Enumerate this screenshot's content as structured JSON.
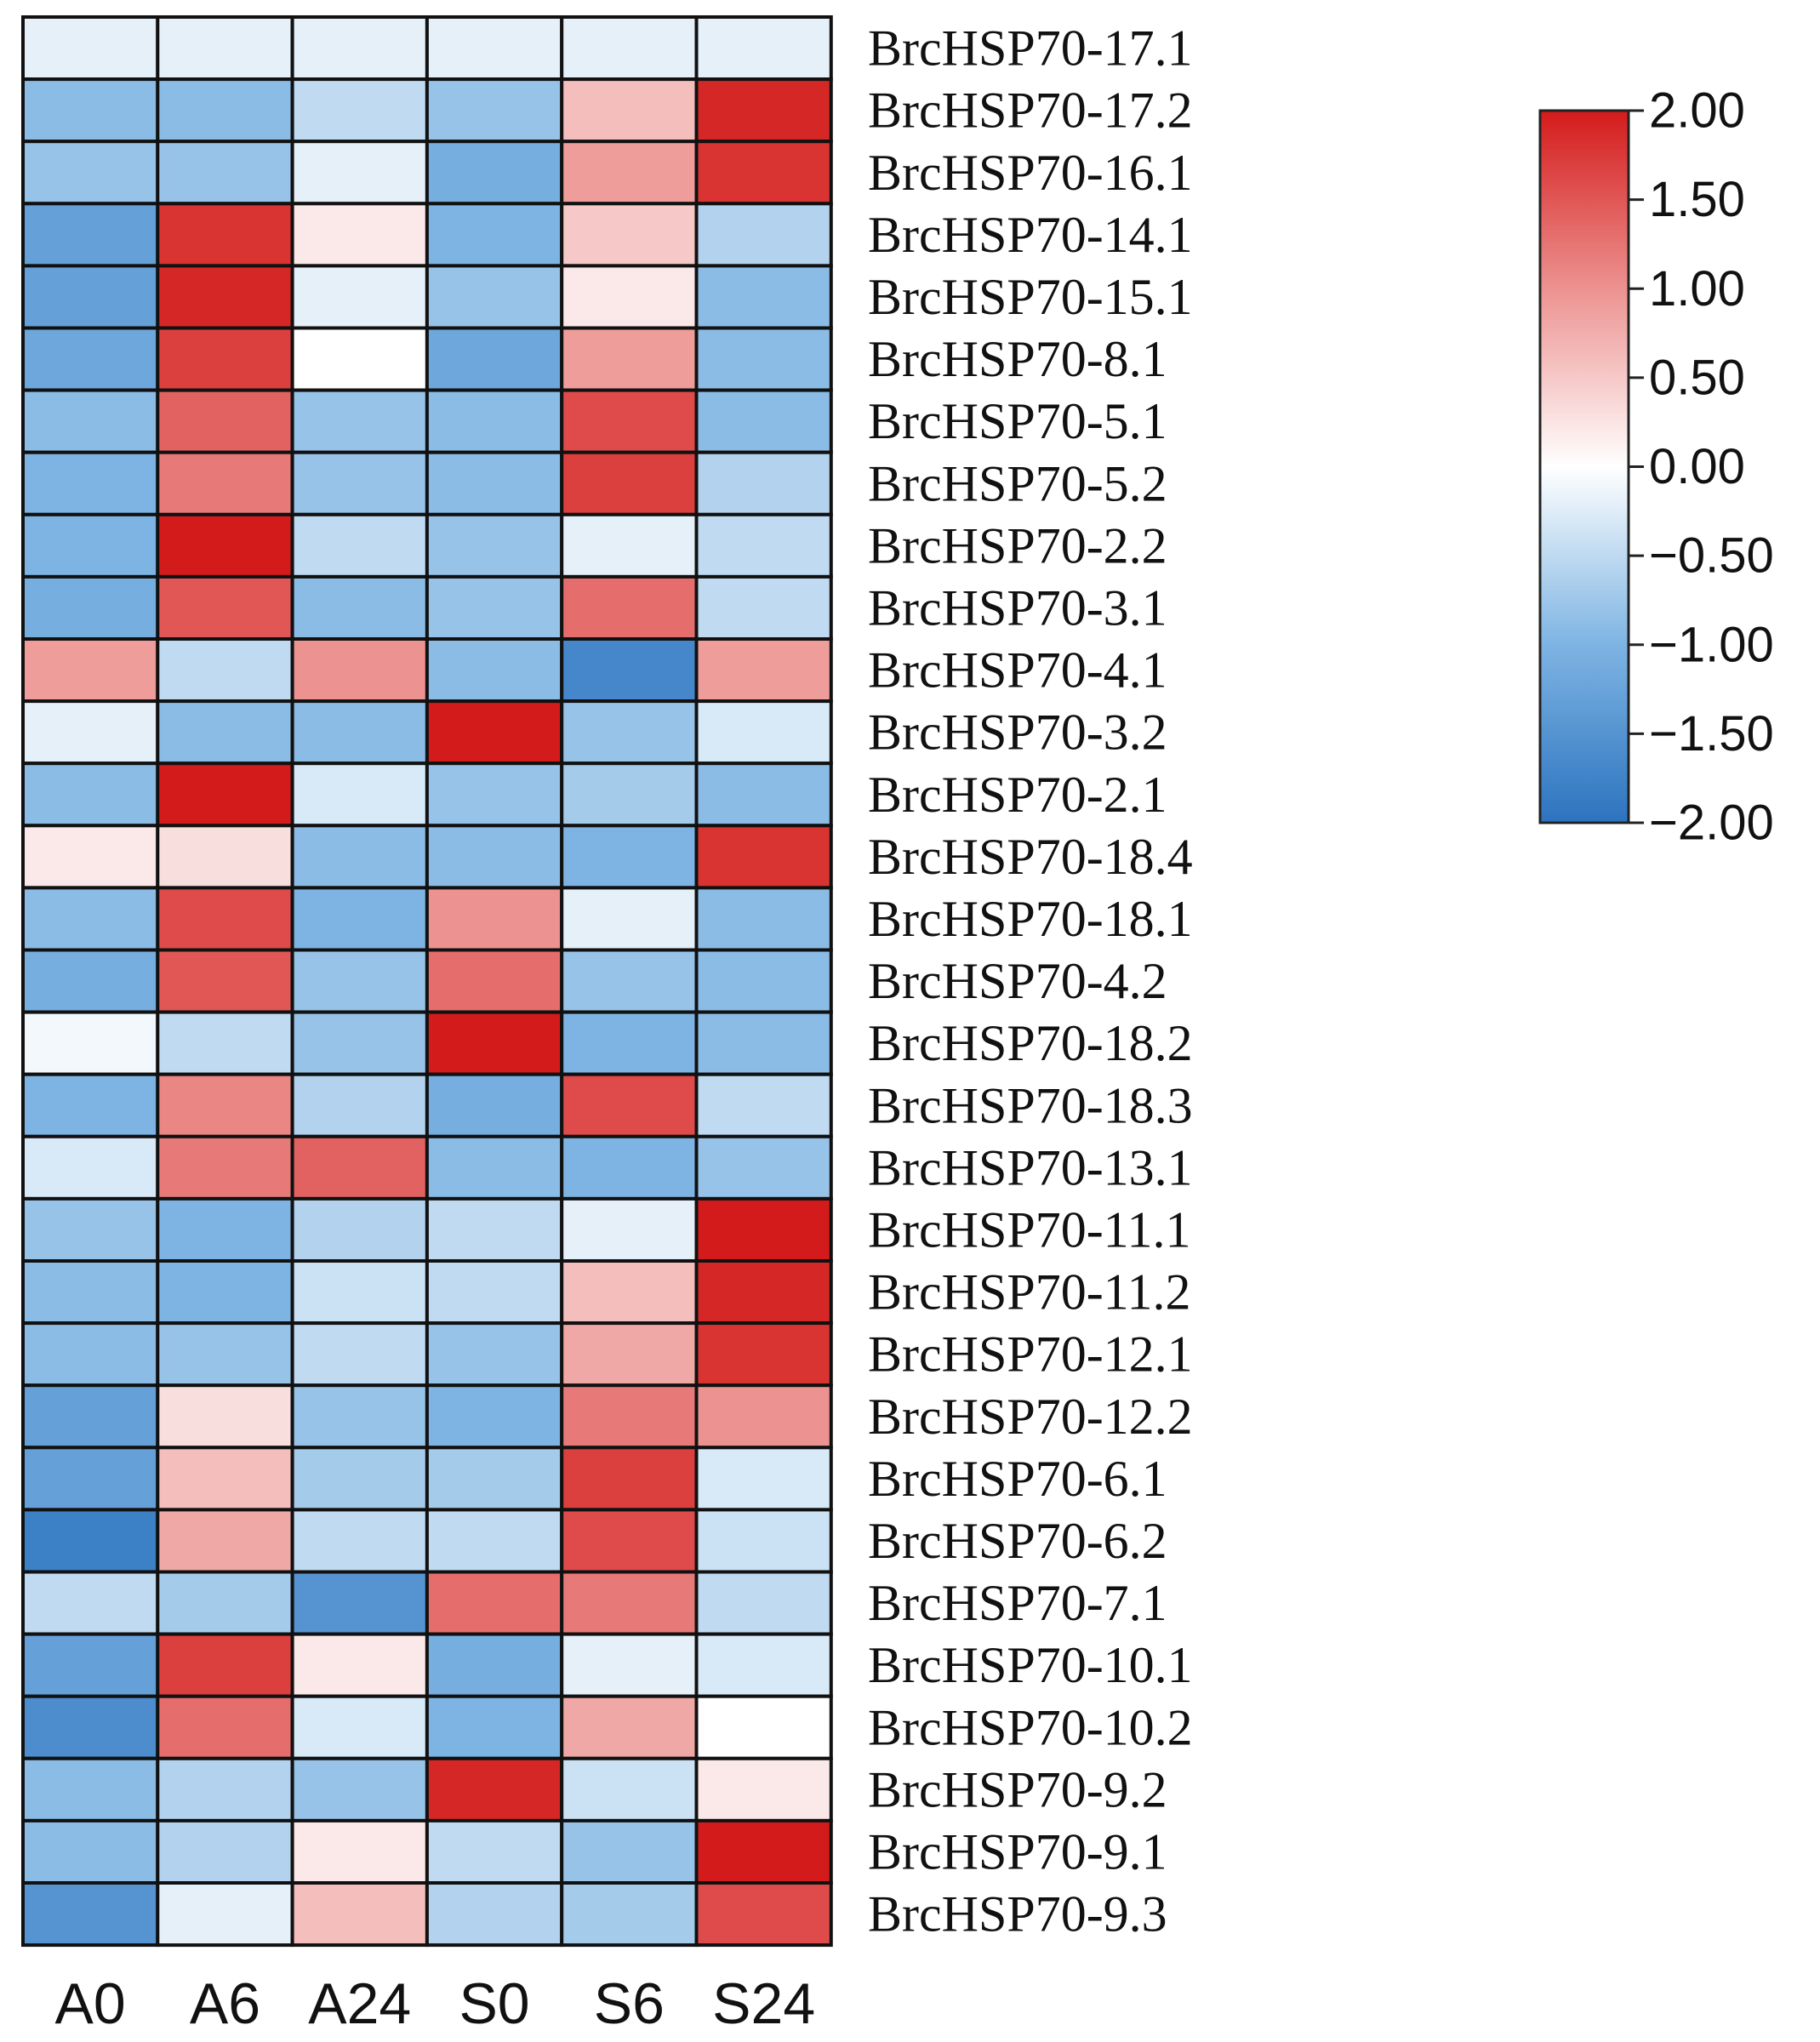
{
  "chart_data": {
    "type": "heatmap",
    "title": "",
    "xlabel": "",
    "ylabel": "",
    "columns": [
      "A0",
      "A6",
      "A24",
      "S0",
      "S6",
      "S24"
    ],
    "rows": [
      "BrcHSP70-17.1",
      "BrcHSP70-17.2",
      "BrcHSP70-16.1",
      "BrcHSP70-14.1",
      "BrcHSP70-15.1",
      "BrcHSP70-8.1",
      "BrcHSP70-5.1",
      "BrcHSP70-5.2",
      "BrcHSP70-2.2",
      "BrcHSP70-3.1",
      "BrcHSP70-4.1",
      "BrcHSP70-3.2",
      "BrcHSP70-2.1",
      "BrcHSP70-18.4",
      "BrcHSP70-18.1",
      "BrcHSP70-4.2",
      "BrcHSP70-18.2",
      "BrcHSP70-18.3",
      "BrcHSP70-13.1",
      "BrcHSP70-11.1",
      "BrcHSP70-11.2",
      "BrcHSP70-12.1",
      "BrcHSP70-12.2",
      "BrcHSP70-6.1",
      "BrcHSP70-6.2",
      "BrcHSP70-7.1",
      "BrcHSP70-10.1",
      "BrcHSP70-10.2",
      "BrcHSP70-9.2",
      "BrcHSP70-9.1",
      "BrcHSP70-9.3"
    ],
    "values": [
      [
        -0.2,
        -0.2,
        -0.2,
        -0.2,
        -0.2,
        -0.2
      ],
      [
        -0.9,
        -0.9,
        -0.5,
        -0.8,
        0.6,
        1.9
      ],
      [
        -0.8,
        -0.8,
        -0.2,
        -1.1,
        0.9,
        1.8
      ],
      [
        -1.3,
        1.8,
        0.2,
        -1.0,
        0.5,
        -0.6
      ],
      [
        -1.3,
        1.9,
        -0.2,
        -0.8,
        0.2,
        -0.9
      ],
      [
        -1.2,
        1.7,
        0.0,
        -1.2,
        0.9,
        -0.9
      ],
      [
        -0.9,
        1.4,
        -0.8,
        -0.9,
        1.6,
        -0.9
      ],
      [
        -1.0,
        1.2,
        -0.8,
        -0.9,
        1.7,
        -0.6
      ],
      [
        -1.0,
        2.0,
        -0.5,
        -0.8,
        -0.2,
        -0.5
      ],
      [
        -1.1,
        1.5,
        -0.9,
        -0.8,
        1.3,
        -0.5
      ],
      [
        0.9,
        -0.5,
        1.0,
        -0.9,
        -1.7,
        0.9
      ],
      [
        -0.2,
        -0.9,
        -0.9,
        2.0,
        -0.8,
        -0.3
      ],
      [
        -0.9,
        2.0,
        -0.3,
        -0.8,
        -0.7,
        -0.9
      ],
      [
        0.2,
        0.3,
        -0.9,
        -0.9,
        -1.0,
        1.8
      ],
      [
        -0.9,
        1.6,
        -1.0,
        1.0,
        -0.2,
        -0.9
      ],
      [
        -1.1,
        1.5,
        -0.8,
        1.3,
        -0.8,
        -0.9
      ],
      [
        -0.1,
        -0.5,
        -0.8,
        2.0,
        -1.0,
        -0.9
      ],
      [
        -1.0,
        1.1,
        -0.6,
        -1.1,
        1.6,
        -0.5
      ],
      [
        -0.3,
        1.2,
        1.4,
        -0.9,
        -1.0,
        -0.8
      ],
      [
        -0.8,
        -1.0,
        -0.6,
        -0.5,
        -0.2,
        2.0
      ],
      [
        -0.9,
        -1.0,
        -0.4,
        -0.5,
        0.6,
        1.9
      ],
      [
        -0.9,
        -0.8,
        -0.5,
        -0.8,
        0.8,
        1.8
      ],
      [
        -1.3,
        0.3,
        -0.8,
        -1.0,
        1.2,
        1.0
      ],
      [
        -1.3,
        0.6,
        -0.7,
        -0.7,
        1.7,
        -0.3
      ],
      [
        -1.8,
        0.8,
        -0.5,
        -0.5,
        1.6,
        -0.4
      ],
      [
        -0.5,
        -0.7,
        -1.5,
        1.3,
        1.2,
        -0.5
      ],
      [
        -1.3,
        1.7,
        0.2,
        -1.1,
        -0.2,
        -0.3
      ],
      [
        -1.6,
        1.3,
        -0.3,
        -1.0,
        0.8,
        0.0
      ],
      [
        -0.9,
        -0.6,
        -0.8,
        1.9,
        -0.4,
        0.2
      ],
      [
        -0.9,
        -0.6,
        0.2,
        -0.5,
        -0.8,
        2.0
      ],
      [
        -1.5,
        -0.2,
        0.6,
        -0.6,
        -0.7,
        1.6
      ]
    ],
    "colorbar": {
      "min": -2.0,
      "max": 2.0,
      "ticks": [
        "2.00",
        "1.50",
        "1.00",
        "0.50",
        "0.00",
        "−0.50",
        "−1.00",
        "−1.50",
        "−2.00"
      ],
      "colors": {
        "low": "#2c73bf",
        "lowmid": "#7eb4e3",
        "mid": "#ffffff",
        "highmid": "#ec9290",
        "high": "#d41b1b"
      }
    },
    "colorbar_position": "right",
    "grid": true
  }
}
